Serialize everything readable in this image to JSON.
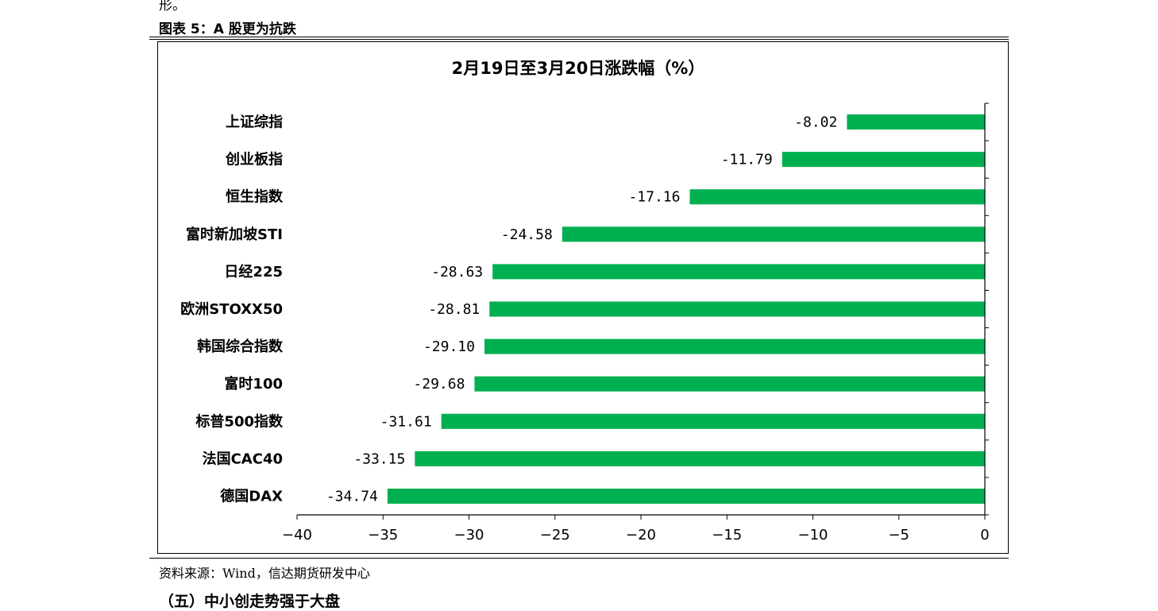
{
  "page": {
    "prev_text": "形。",
    "figure_title": "图表 5：A 股更为抗跌",
    "source": "资料来源：Wind，信达期货研发中心",
    "next_heading": "（五）中小创走势强于大盘"
  },
  "colors": {
    "bar": "#00B050",
    "axis": "#000000"
  },
  "chart_data": {
    "type": "bar",
    "orientation": "horizontal",
    "title": "2月19日至3月20日涨跌幅（%）",
    "categories": [
      "上证综指",
      "创业板指",
      "恒生指数",
      "富时新加坡STI",
      "日经225",
      "欧洲STOXX50",
      "韩国综合指数",
      "富时100",
      "标普500指数",
      "法国CAC40",
      "德国DAX"
    ],
    "values": [
      -8.02,
      -11.79,
      -17.16,
      -24.58,
      -28.63,
      -28.81,
      -29.1,
      -29.68,
      -31.61,
      -33.15,
      -34.74
    ],
    "value_labels": [
      "-8.02",
      "-11.79",
      "-17.16",
      "-24.58",
      "-28.63",
      "-28.81",
      "-29.10",
      "-29.68",
      "-31.61",
      "-33.15",
      "-34.74"
    ],
    "xlim": [
      -40,
      0
    ],
    "xticks": [
      -40,
      -35,
      -30,
      -25,
      -20,
      -15,
      -10,
      -5,
      0
    ],
    "grid": false,
    "legend": "none"
  }
}
